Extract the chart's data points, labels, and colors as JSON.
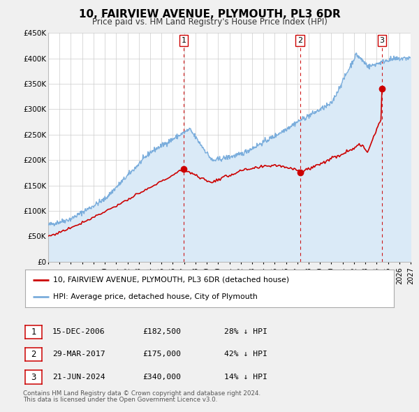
{
  "title": "10, FAIRVIEW AVENUE, PLYMOUTH, PL3 6DR",
  "subtitle": "Price paid vs. HM Land Registry's House Price Index (HPI)",
  "ylim": [
    0,
    450000
  ],
  "yticks": [
    0,
    50000,
    100000,
    150000,
    200000,
    250000,
    300000,
    350000,
    400000,
    450000
  ],
  "ytick_labels": [
    "£0",
    "£50K",
    "£100K",
    "£150K",
    "£200K",
    "£250K",
    "£300K",
    "£350K",
    "£400K",
    "£450K"
  ],
  "x_start_year": 1995,
  "x_end_year": 2027,
  "sale_color": "#cc0000",
  "hpi_color": "#7aaddc",
  "hpi_fill_color": "#daeaf7",
  "sale_dates_num": [
    2006.96,
    2017.24,
    2024.47
  ],
  "sale_prices": [
    182500,
    175000,
    340000
  ],
  "sale_labels": [
    "1",
    "2",
    "3"
  ],
  "vline_dates": [
    2006.96,
    2017.24,
    2024.47
  ],
  "legend_sale_label": "10, FAIRVIEW AVENUE, PLYMOUTH, PL3 6DR (detached house)",
  "legend_hpi_label": "HPI: Average price, detached house, City of Plymouth",
  "table_rows": [
    {
      "num": "1",
      "date": "15-DEC-2006",
      "price": "£182,500",
      "hpi": "28% ↓ HPI"
    },
    {
      "num": "2",
      "date": "29-MAR-2017",
      "price": "£175,000",
      "hpi": "42% ↓ HPI"
    },
    {
      "num": "3",
      "date": "21-JUN-2024",
      "price": "£340,000",
      "hpi": "14% ↓ HPI"
    }
  ],
  "footnote1": "Contains HM Land Registry data © Crown copyright and database right 2024.",
  "footnote2": "This data is licensed under the Open Government Licence v3.0.",
  "background_color": "#f0f0f0",
  "plot_bg_color": "#ffffff",
  "grid_color": "#cccccc"
}
